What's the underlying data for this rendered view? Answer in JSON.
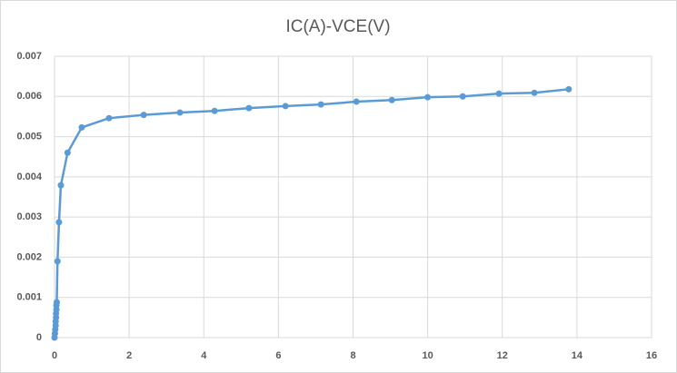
{
  "chart_data": {
    "type": "scatter",
    "title": "IC(A)-VCE(V)",
    "series": [
      {
        "color": "#5b9bd5",
        "x": [
          0,
          0.01,
          0.02,
          0.03,
          0.03,
          0.04,
          0.04,
          0.05,
          0.05,
          0.06,
          0.08,
          0.12,
          0.17,
          0.35,
          0.73,
          1.46,
          2.39,
          3.36,
          4.29,
          5.21,
          6.19,
          7.14,
          8.09,
          9.04,
          10.0,
          10.94,
          11.91,
          12.86,
          13.78
        ],
        "values": [
          0,
          0.0001,
          0.0002,
          0.0003,
          0.0004,
          0.0005,
          0.0006,
          0.0007,
          0.0008,
          0.00088,
          0.0019,
          0.00287,
          0.00379,
          0.0046,
          0.00523,
          0.00546,
          0.00554,
          0.0056,
          0.00564,
          0.00571,
          0.00576,
          0.0058,
          0.00587,
          0.00591,
          0.00598,
          0.006,
          0.00607,
          0.00609,
          0.00618
        ]
      }
    ],
    "xlim": [
      0,
      16
    ],
    "xticks": [
      0,
      2,
      4,
      6,
      8,
      10,
      12,
      14,
      16
    ],
    "ylim": [
      0,
      0.007
    ],
    "yticks": [
      0,
      0.001,
      0.002,
      0.003,
      0.004,
      0.005,
      0.006,
      0.007
    ],
    "grid": true
  }
}
